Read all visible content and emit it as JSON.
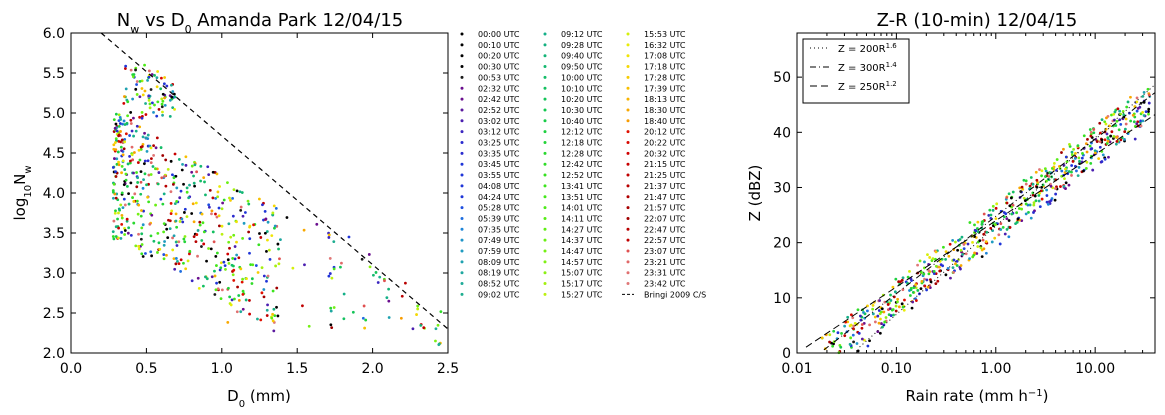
{
  "chart_data": [
    {
      "type": "scatter",
      "title": "N_w vs D_0 Amanda Park 12/04/15",
      "title_parts": {
        "a": "N",
        "a_sub": "w",
        "b": " vs D",
        "b_sub": "0",
        "c": " Amanda Park 12/04/15"
      },
      "xlabel": "D_0 (mm)",
      "xlabel_parts": {
        "a": "D",
        "sub": "0",
        "b": " (mm)"
      },
      "ylabel": "log10 N_w",
      "ylabel_parts": {
        "a": "log",
        "sub1": "10",
        "b": "N",
        "sub2": "w"
      },
      "xlim": [
        0.0,
        2.5
      ],
      "ylim": [
        2.0,
        6.0
      ],
      "xticks": [
        "0.0",
        "0.5",
        "1.0",
        "1.5",
        "2.0",
        "2.5"
      ],
      "yticks": [
        "2.0",
        "2.5",
        "3.0",
        "3.5",
        "4.0",
        "4.5",
        "5.0",
        "5.5",
        "6.0"
      ],
      "reference_line": {
        "name": "Bringi 2009 C/S",
        "x": [
          0.2,
          2.5
        ],
        "y": [
          6.0,
          2.3
        ],
        "style": "dashed"
      },
      "legend_title_entries": [
        "00:00 UTC",
        "00:10 UTC",
        "00:20 UTC",
        "00:30 UTC",
        "00:53 UTC",
        "02:32 UTC",
        "02:42 UTC",
        "02:52 UTC",
        "03:02 UTC",
        "03:12 UTC",
        "03:25 UTC",
        "03:35 UTC",
        "03:45 UTC",
        "03:55 UTC",
        "04:08 UTC",
        "04:24 UTC",
        "05:28 UTC",
        "05:39 UTC",
        "07:35 UTC",
        "07:49 UTC",
        "07:59 UTC",
        "08:09 UTC",
        "08:19 UTC",
        "08:52 UTC",
        "09:02 UTC",
        "09:12 UTC",
        "09:28 UTC",
        "09:40 UTC",
        "09:50 UTC",
        "10:00 UTC",
        "10:10 UTC",
        "10:20 UTC",
        "10:30 UTC",
        "10:40 UTC",
        "12:12 UTC",
        "12:18 UTC",
        "12:28 UTC",
        "12:42 UTC",
        "12:52 UTC",
        "13:41 UTC",
        "13:51 UTC",
        "14:01 UTC",
        "14:11 UTC",
        "14:27 UTC",
        "14:37 UTC",
        "14:47 UTC",
        "14:57 UTC",
        "15:07 UTC",
        "15:17 UTC",
        "15:27 UTC",
        "15:53 UTC",
        "16:32 UTC",
        "17:08 UTC",
        "17:18 UTC",
        "17:28 UTC",
        "17:39 UTC",
        "18:13 UTC",
        "18:30 UTC",
        "18:40 UTC",
        "20:12 UTC",
        "20:22 UTC",
        "20:32 UTC",
        "21:15 UTC",
        "21:25 UTC",
        "21:37 UTC",
        "21:47 UTC",
        "21:57 UTC",
        "22:07 UTC",
        "22:47 UTC",
        "22:57 UTC",
        "23:07 UTC",
        "23:21 UTC",
        "23:31 UTC",
        "23:42 UTC"
      ],
      "legend_colors": [
        "#000000",
        "#000000",
        "#000000",
        "#000000",
        "#1a1a1a",
        "#6a0f8e",
        "#6a0f8e",
        "#5b1a9e",
        "#4b1fb0",
        "#3a26c0",
        "#2a2bcf",
        "#2a2bcf",
        "#1f35d8",
        "#1f35d8",
        "#1f35d8",
        "#1f35d8",
        "#1f4fe0",
        "#1f6ee0",
        "#1f86d8",
        "#1f95c8",
        "#1f9cc0",
        "#1fa2b0",
        "#1fa8a0",
        "#1fab98",
        "#1fae90",
        "#14b088",
        "#14b080",
        "#14b478",
        "#14b870",
        "#14bc68",
        "#14c060",
        "#14c458",
        "#14c850",
        "#18cc48",
        "#1ed040",
        "#24d438",
        "#2ad830",
        "#30dc28",
        "#36e020",
        "#3ce41c",
        "#44e81a",
        "#4cea18",
        "#56ec16",
        "#60ee14",
        "#6aef14",
        "#74f014",
        "#80f014",
        "#8cf014",
        "#a4f010",
        "#bcf010",
        "#d4f00c",
        "#e8ec08",
        "#f0e406",
        "#f4d804",
        "#f6cc02",
        "#f8c000",
        "#f8b400",
        "#f8a800",
        "#f89c00",
        "#e01000",
        "#d80800",
        "#d00000",
        "#c80000",
        "#c00000",
        "#b80000",
        "#b00000",
        "#a80000",
        "#a00000",
        "#b80000",
        "#c00000",
        "#e05050",
        "#e06868",
        "#e07070",
        "#e07878"
      ],
      "legend_ref_label": "Bringi 2009 C/S"
    },
    {
      "type": "scatter",
      "title": "Z-R (10-min) 12/04/15",
      "xlabel": "Rain rate (mm h^-1)",
      "xlabel_parts": {
        "a": "Rain rate (mm h",
        "sup": "−1",
        "b": ")"
      },
      "ylabel": "Z (dBZ)",
      "xscale": "log",
      "xlim": [
        0.01,
        40
      ],
      "ylim": [
        0,
        58
      ],
      "xticks": [
        "0.01",
        "0.10",
        "1.00",
        "10.00"
      ],
      "yticks": [
        "0",
        "10",
        "20",
        "30",
        "40",
        "50"
      ],
      "legend_placement": "top-left",
      "legend": [
        {
          "label": "Z = 200R",
          "exp": "1.6",
          "a": 200,
          "b": 1.6,
          "style": "dotted"
        },
        {
          "label": "Z = 300R",
          "exp": "1.4",
          "a": 300,
          "b": 1.4,
          "style": "dashdot"
        },
        {
          "label": "Z = 250R",
          "exp": "1.2",
          "a": 250,
          "b": 1.2,
          "style": "dashed"
        }
      ]
    }
  ]
}
